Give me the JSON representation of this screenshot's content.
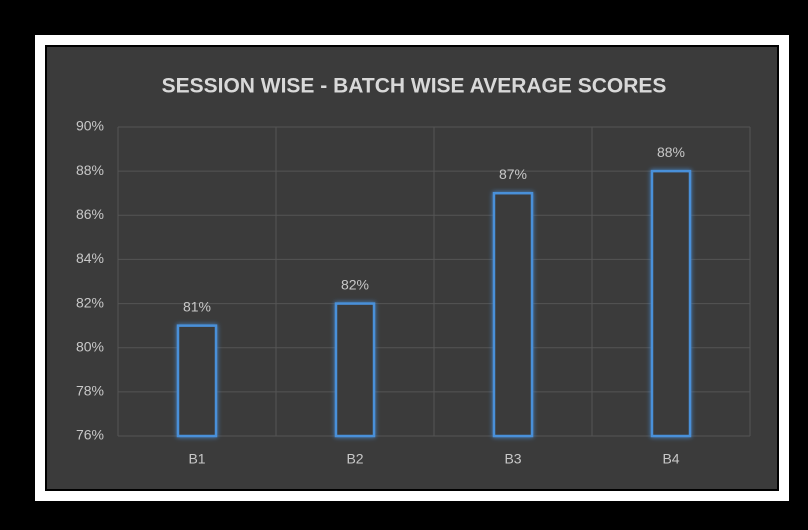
{
  "chart_data": {
    "type": "bar",
    "title": "SESSION WISE - BATCH WISE AVERAGE SCORES",
    "categories": [
      "B1",
      "B2",
      "B3",
      "B4"
    ],
    "values": [
      81,
      82,
      87,
      88
    ],
    "value_labels": [
      "81%",
      "82%",
      "87%",
      "88%"
    ],
    "color": "#4a90d9",
    "ylim": [
      76,
      90
    ],
    "yticks": [
      {
        "value": 76,
        "label": "76%"
      },
      {
        "value": 78,
        "label": "78%"
      },
      {
        "value": 80,
        "label": "80%"
      },
      {
        "value": 82,
        "label": "82%"
      },
      {
        "value": 84,
        "label": "84%"
      },
      {
        "value": 86,
        "label": "86%"
      },
      {
        "value": 88,
        "label": "88%"
      },
      {
        "value": 90,
        "label": "90%"
      }
    ],
    "grid": true
  }
}
